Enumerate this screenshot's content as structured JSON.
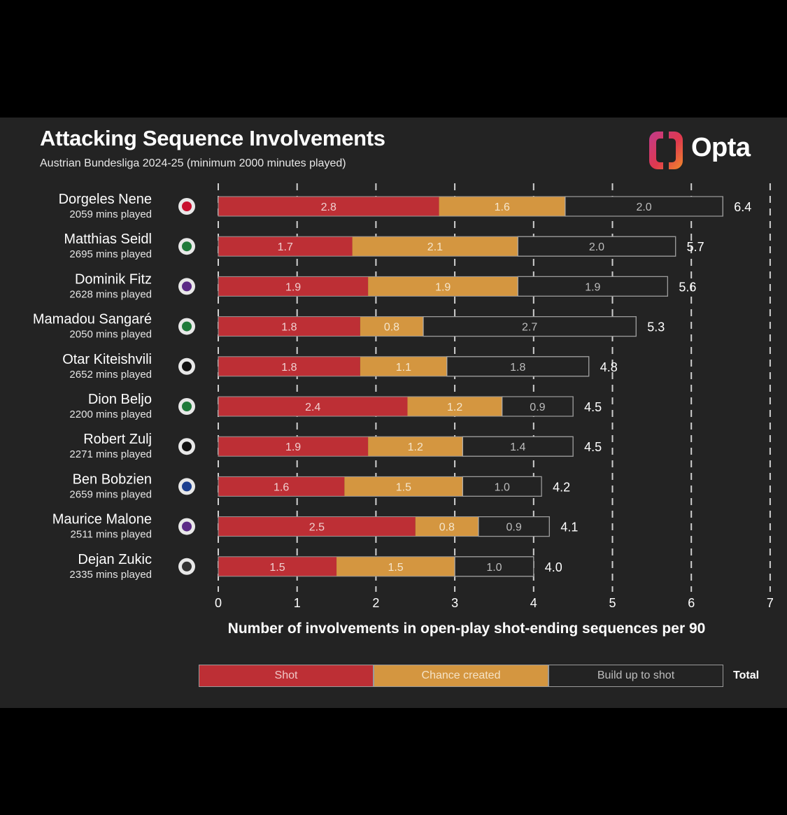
{
  "header": {
    "title": "Attacking Sequence Involvements",
    "subtitle": "Austrian Bundesliga 2024-25 (minimum 2000 minutes played)",
    "brand": "Opta",
    "brand_icon": "opta-logo-icon"
  },
  "colors": {
    "background": "#232323",
    "shot": "#bd2f35",
    "chance": "#d49640",
    "buildup": "#232323",
    "buildup_border": "#b0b0b0"
  },
  "chart_data": {
    "type": "bar",
    "orientation": "horizontal",
    "stacked": true,
    "xlabel": "Number of involvements in open-play shot-ending sequences per 90",
    "xlim": [
      0,
      7
    ],
    "xticks": [
      0,
      1,
      2,
      3,
      4,
      5,
      6,
      7
    ],
    "grid": "vertical dashed",
    "categories": [
      "Dorgeles Nene",
      "Matthias Seidl",
      "Dominik Fitz",
      "Mamadou Sangaré",
      "Otar Kiteishvili",
      "Dion Beljo",
      "Robert Zulj",
      "Ben Bobzien",
      "Maurice Malone",
      "Dejan Zukic"
    ],
    "minutes": [
      "2059 mins played",
      "2695 mins played",
      "2628 mins played",
      "2050 mins played",
      "2652 mins played",
      "2200 mins played",
      "2271 mins played",
      "2659 mins played",
      "2511 mins played",
      "2335 mins played"
    ],
    "club_icons": [
      "red-bull-salzburg-badge-icon",
      "rapid-wien-badge-icon",
      "austria-wien-badge-icon",
      "rapid-wien-badge-icon",
      "sturm-graz-badge-icon",
      "rapid-wien-badge-icon",
      "lask-badge-icon",
      "blau-weiss-linz-badge-icon",
      "austria-wien-badge-icon",
      "wolfsberger-ac-badge-icon"
    ],
    "series": [
      {
        "name": "Shot",
        "values": [
          2.8,
          1.7,
          1.9,
          1.8,
          1.8,
          2.4,
          1.9,
          1.6,
          2.5,
          1.5
        ]
      },
      {
        "name": "Chance created",
        "values": [
          1.6,
          2.1,
          1.9,
          0.8,
          1.1,
          1.2,
          1.2,
          1.5,
          0.8,
          1.5
        ]
      },
      {
        "name": "Build up to shot",
        "values": [
          2.0,
          2.0,
          1.9,
          2.7,
          1.8,
          0.9,
          1.4,
          1.0,
          0.9,
          1.0
        ]
      }
    ],
    "totals": [
      6.4,
      5.7,
      5.6,
      5.3,
      4.8,
      4.5,
      4.5,
      4.2,
      4.1,
      4.0
    ],
    "legend": {
      "items": [
        "Shot",
        "Chance created",
        "Build up to shot"
      ],
      "total_label": "Total",
      "placement": "bottom"
    }
  }
}
